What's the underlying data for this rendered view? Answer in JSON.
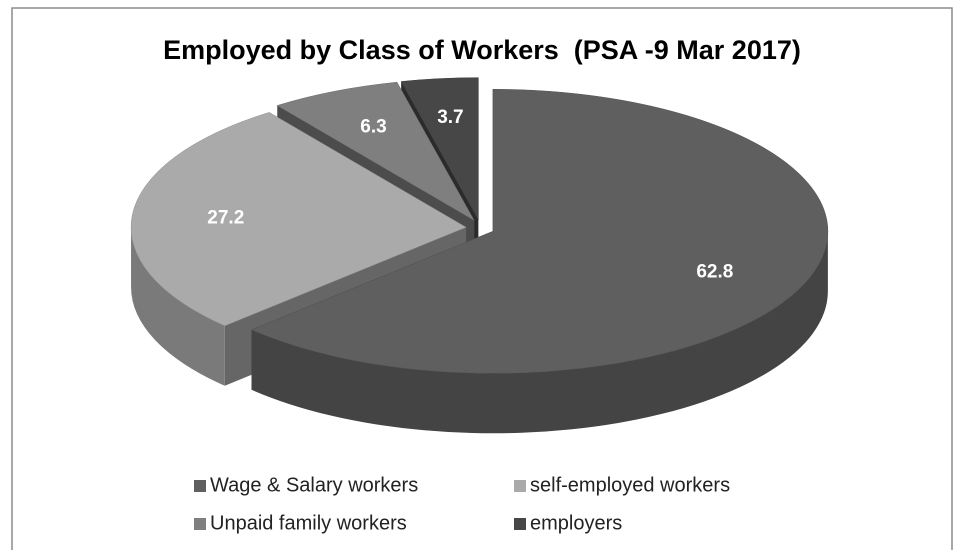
{
  "chart_data": {
    "type": "pie",
    "title": "Employed by Class of Workers  (PSA -9 Mar 2017)",
    "categories": [
      "Wage & Salary workers",
      "self-employed workers",
      "Unpaid family workers",
      "employers"
    ],
    "values": [
      62.8,
      27.2,
      6.3,
      3.7
    ],
    "colors": [
      "#5f5f5f",
      "#aaaaaa",
      "#7f7f7f",
      "#474747"
    ],
    "legend": "bottom"
  }
}
